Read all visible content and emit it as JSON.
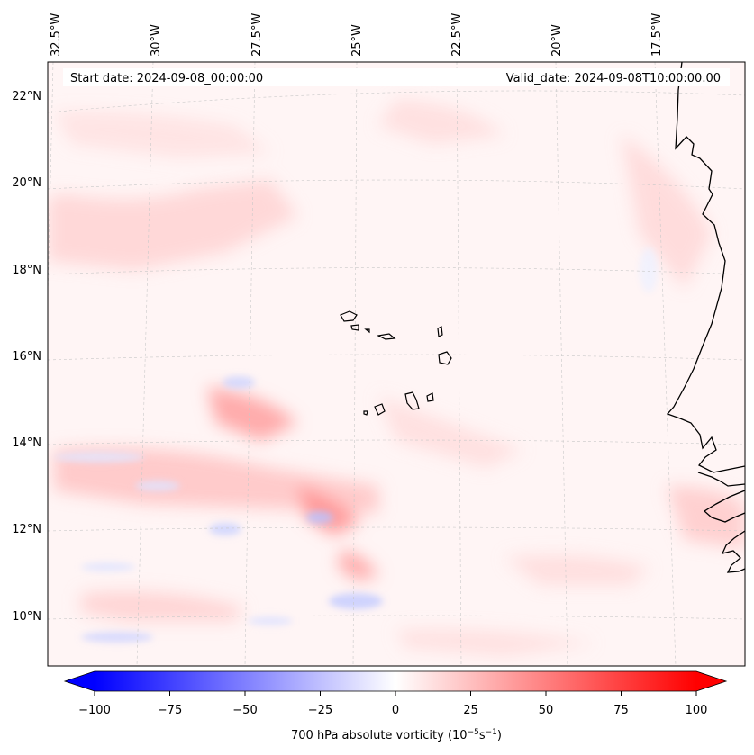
{
  "map": {
    "header_left": "Start date: 2024-09-08_00:00:00",
    "header_right": "Valid_date: 2024-09-08T10:00:00.00",
    "lon_labels": [
      "32.5°W",
      "30°W",
      "27.5°W",
      "25°W",
      "22.5°W",
      "20°W",
      "17.5°W"
    ],
    "lat_labels": [
      "22°N",
      "20°N",
      "18°N",
      "16°N",
      "14°N",
      "12°N",
      "10°N"
    ],
    "region": "Cabo Verde islands and West African coast (Senegal/Gambia/Guinea-Bissau)"
  },
  "colorbar": {
    "label_main": "700 hPa absolute vorticity (10",
    "label_exp1": "−5",
    "label_mid": "s",
    "label_exp2": "−1",
    "label_end": ")",
    "ticks": [
      "−100",
      "−75",
      "−50",
      "−25",
      "0",
      "25",
      "50",
      "75",
      "100"
    ],
    "min": -100,
    "max": 100,
    "low_color": "#0000ff",
    "high_color": "#ff0000",
    "mid_color": "#ffffff"
  }
}
